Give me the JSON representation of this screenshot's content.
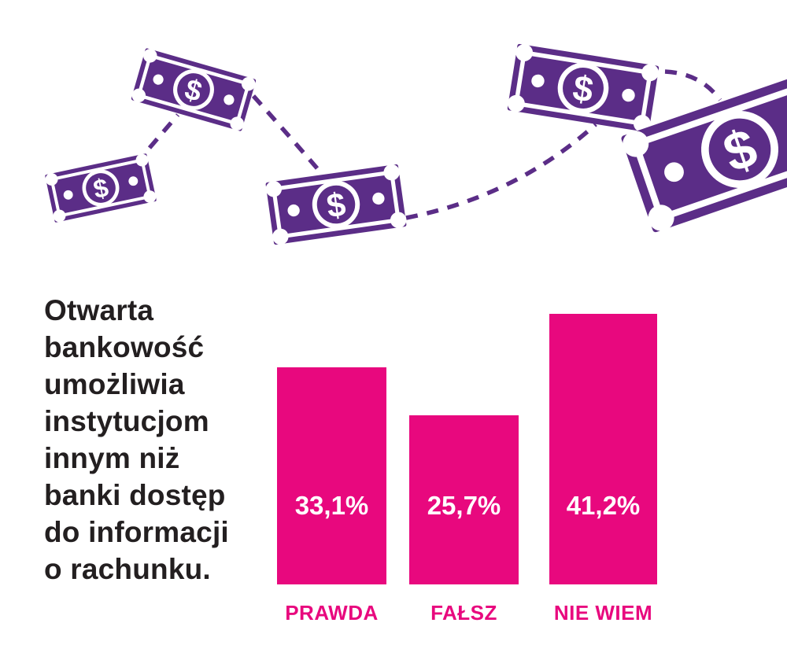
{
  "page": {
    "background": "#ffffff"
  },
  "statement": {
    "text": "Otwarta\nbankowość\numożliwia\ninstytucjom\ninnym niż\nbanki dostęp\ndo informacji\no rachunku.",
    "color": "#231f20"
  },
  "illustration": {
    "description": "five purple dollar banknotes connected by a dashed flow line",
    "icon": "dollar-banknote-icon",
    "banknote_symbol": "$",
    "banknote_count": 5,
    "color": "#5b2d87"
  },
  "chart_data": {
    "type": "bar",
    "categories": [
      "PRAWDA",
      "FAŁSZ",
      "NIE WIEM"
    ],
    "values": [
      33.1,
      25.7,
      41.2
    ],
    "display_values": [
      "33,1%",
      "25,7%",
      "41,2%"
    ],
    "unit": "%",
    "title": "Otwarta bankowość umożliwia instytucjom innym niż banki dostęp do informacji o rachunku.",
    "xlabel": "",
    "ylabel": "",
    "ylim": [
      0,
      45
    ],
    "grid": false,
    "legend": false,
    "bar_color": "#e8087e",
    "value_label_color": "#ffffff",
    "category_label_color": "#e8087e",
    "value_labels_inside_bars": true
  }
}
